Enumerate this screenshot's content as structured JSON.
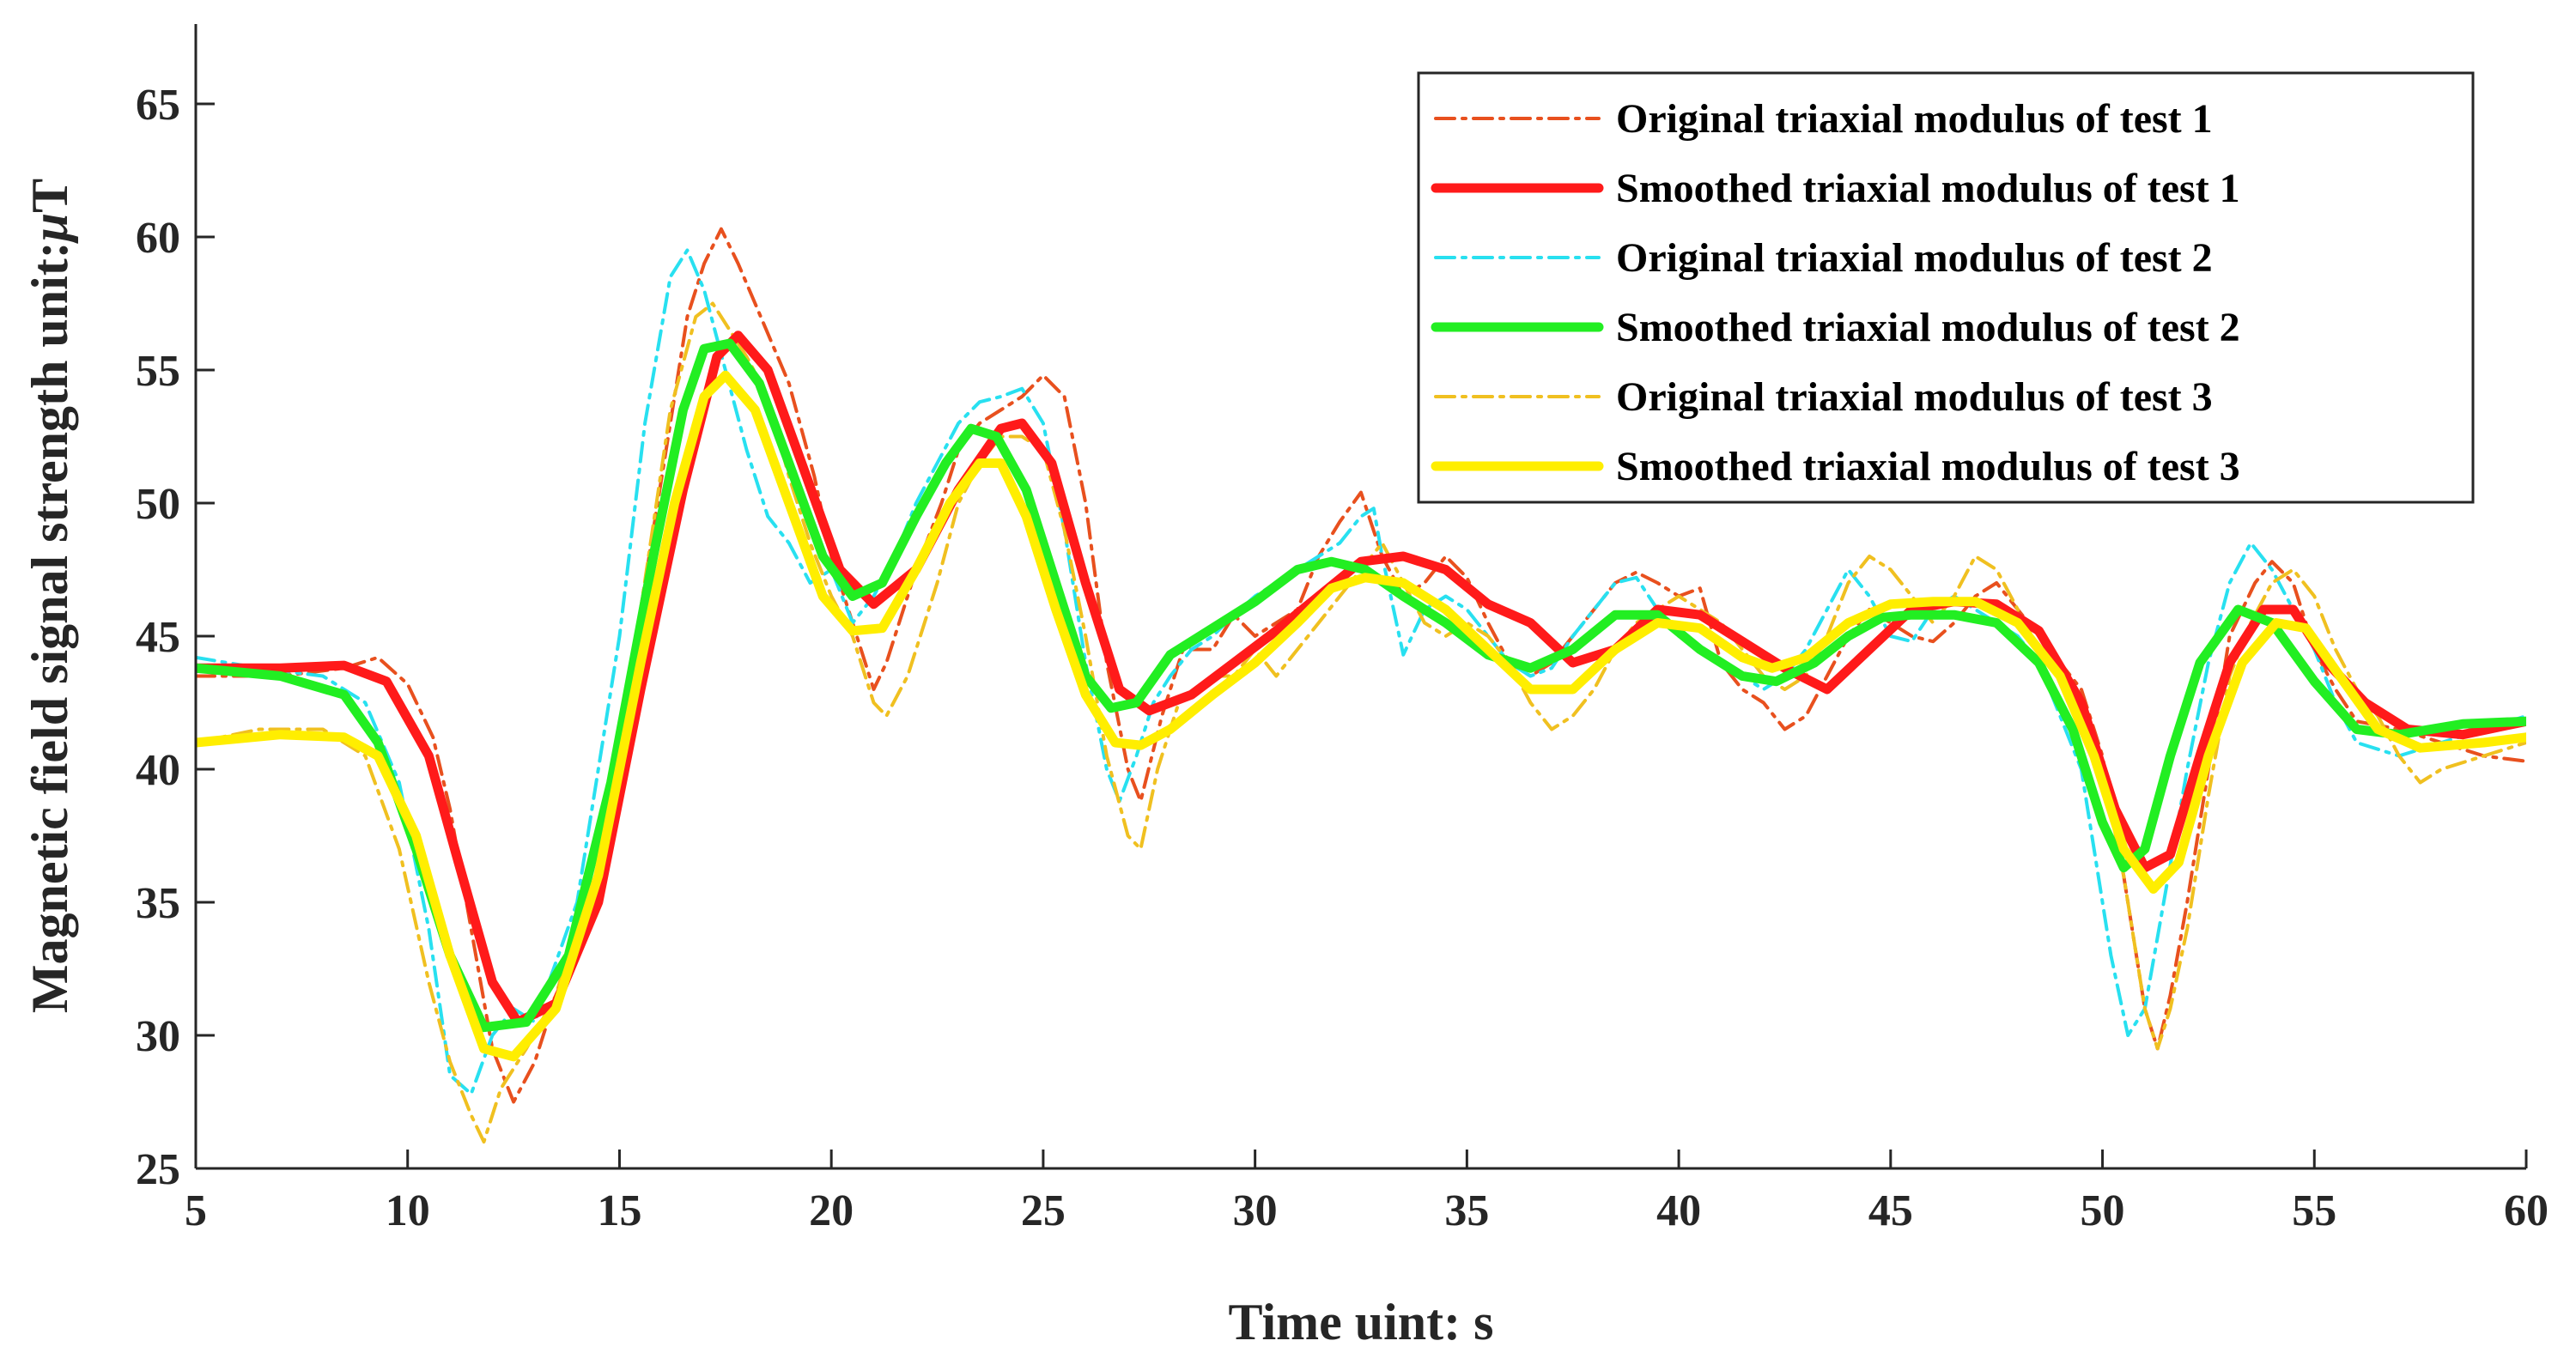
{
  "chart_data": {
    "type": "line",
    "xlabel": "Time  uint: s",
    "ylabel_prefix": "Magnetic field signal strength  unit:",
    "ylabel_unit_greek": "μ",
    "ylabel_unit_suffix": "T",
    "xlim": [
      5,
      60
    ],
    "ylim": [
      25,
      68
    ],
    "xticks": [
      5,
      10,
      15,
      20,
      25,
      30,
      35,
      40,
      45,
      50,
      55,
      60
    ],
    "yticks": [
      25,
      30,
      35,
      40,
      45,
      50,
      55,
      60,
      65
    ],
    "legend_location": "top-right",
    "grid": false,
    "series": [
      {
        "name": "Original triaxial modulus of test 1",
        "style": "dashdot",
        "color": "#e8501e",
        "x": [
          5,
          7,
          8.5,
          9.3,
          10,
          10.6,
          11,
          11.5,
          12,
          12.5,
          13,
          14,
          15,
          16,
          16.6,
          17,
          17.4,
          17.8,
          18.2,
          18.6,
          19,
          19.6,
          20,
          20.5,
          21,
          21.3,
          22,
          22.6,
          23,
          23.5,
          24,
          24.5,
          25,
          25.5,
          26,
          26.5,
          27,
          27.3,
          27.8,
          28.3,
          29,
          29.5,
          30,
          31,
          31.5,
          32,
          32.5,
          33,
          33.5,
          34,
          34.5,
          35,
          35.5,
          36,
          36.5,
          37,
          37.5,
          38,
          38.5,
          39,
          39.5,
          40,
          40.5,
          41,
          41.5,
          42,
          42.5,
          43,
          43.5,
          44,
          44.5,
          45,
          45.5,
          46,
          46.5,
          47,
          47.5,
          48,
          48.5,
          49,
          49.5,
          50,
          50.5,
          51,
          51.3,
          51.6,
          52,
          52.5,
          53,
          53.3,
          53.6,
          54,
          54.5,
          55,
          55.5,
          56,
          57,
          58,
          59,
          60
        ],
        "y": [
          43.5,
          43.5,
          43.8,
          44.2,
          43.2,
          41.2,
          38.5,
          34,
          29.5,
          27.5,
          29,
          34,
          41,
          51,
          57,
          59,
          60.3,
          59,
          57.5,
          56,
          54.5,
          51,
          48,
          45.5,
          43,
          44,
          47.5,
          50,
          52,
          53,
          53.5,
          54,
          54.8,
          54,
          50,
          44,
          40,
          38.8,
          42,
          44.5,
          44.5,
          45.8,
          45,
          46,
          48,
          49.3,
          50.4,
          48,
          46.5,
          47,
          48,
          47.2,
          45.5,
          44,
          43.5,
          44,
          45,
          46,
          47,
          47.4,
          47,
          46.5,
          46.8,
          44,
          43,
          42.5,
          41.5,
          42,
          43.5,
          45,
          46,
          45.5,
          45,
          44.8,
          45.5,
          46.5,
          47,
          46,
          45,
          44,
          43,
          40.5,
          36,
          31,
          29.5,
          31.5,
          35,
          40,
          45,
          46,
          47,
          47.8,
          47,
          44.5,
          43,
          41.8,
          41.5,
          41,
          40.5,
          40.3
        ]
      },
      {
        "name": "Smoothed triaxial modulus of test 1",
        "style": "solid",
        "color": "#ff1a1a",
        "x": [
          5,
          7,
          8.5,
          9.5,
          10.5,
          11.2,
          12,
          12.6,
          13.5,
          14.5,
          15.5,
          16.5,
          17.3,
          17.8,
          18.5,
          19.3,
          20.2,
          21,
          22,
          23,
          24,
          24.5,
          25.2,
          26,
          26.8,
          27.5,
          28.5,
          29.5,
          30.5,
          31.5,
          32.5,
          33.5,
          34.5,
          35.5,
          36.5,
          37.5,
          38.5,
          39.5,
          40.5,
          41.5,
          42.5,
          43.5,
          44.5,
          45.5,
          46.5,
          47.5,
          48.5,
          49.5,
          50.3,
          51,
          51.6,
          52.3,
          53,
          53.8,
          54.5,
          55.3,
          56.2,
          57.2,
          58.5,
          60
        ],
        "y": [
          43.8,
          43.8,
          43.9,
          43.3,
          40.5,
          36.5,
          32,
          30.5,
          31.2,
          35,
          43,
          50.5,
          55.5,
          56.3,
          55,
          51.5,
          47.5,
          46.2,
          47.5,
          50.5,
          52.8,
          53,
          51.5,
          47,
          43,
          42.2,
          42.8,
          44,
          45.2,
          46.5,
          47.8,
          48,
          47.5,
          46.2,
          45.5,
          44,
          44.5,
          46,
          45.8,
          44.8,
          43.8,
          43,
          44.5,
          46,
          46.3,
          46.2,
          45.2,
          42.5,
          38.5,
          36.3,
          36.8,
          40.5,
          44,
          46,
          46,
          44,
          42.5,
          41.5,
          41.3,
          41.8
        ]
      },
      {
        "name": "Original triaxial modulus of test 2",
        "style": "dashdot",
        "color": "#28e0f0",
        "x": [
          5,
          6.5,
          8,
          9,
          9.8,
          10.5,
          11,
          11.5,
          12,
          12.5,
          13,
          14,
          15,
          15.6,
          16.2,
          16.6,
          17,
          17.5,
          18,
          18.5,
          19,
          19.5,
          20,
          20.5,
          21,
          21.5,
          22,
          22.5,
          23,
          23.5,
          24,
          24.5,
          25,
          25.5,
          26,
          26.5,
          26.8,
          27.2,
          27.6,
          28,
          28.5,
          29,
          29.5,
          30,
          30.5,
          31,
          31.5,
          32,
          32.5,
          32.8,
          33,
          33.5,
          34,
          34.5,
          35,
          35.5,
          36,
          36.5,
          37,
          37.5,
          38,
          38.5,
          39,
          39.5,
          40,
          40.5,
          41,
          41.5,
          42,
          42.5,
          43,
          43.5,
          44,
          44.5,
          45,
          45.5,
          46,
          46.5,
          47,
          47.5,
          48,
          48.5,
          49,
          49.5,
          49.8,
          50.2,
          50.6,
          51,
          51.5,
          52,
          52.5,
          53,
          53.5,
          54,
          54.5,
          55,
          55.5,
          56,
          57,
          58,
          59,
          60
        ],
        "y": [
          44.2,
          43.8,
          43.5,
          42.5,
          39.5,
          34,
          28.5,
          27.8,
          30,
          31,
          30.5,
          35,
          45,
          53,
          58.5,
          59.5,
          58,
          55,
          52,
          49.5,
          48.5,
          47,
          47.5,
          45.5,
          46.5,
          48,
          50,
          51.5,
          53,
          53.8,
          54,
          54.3,
          53,
          49,
          44,
          40,
          38.8,
          40.5,
          42.5,
          43.5,
          44.5,
          45,
          45.8,
          46.5,
          47,
          47.5,
          48,
          48.5,
          49.5,
          49.8,
          48,
          44.3,
          46,
          46.5,
          46,
          45,
          44,
          43.5,
          43.8,
          45,
          46,
          47,
          47.2,
          46,
          45,
          44.5,
          44,
          43.5,
          43,
          43.5,
          44.5,
          46,
          47.5,
          46.5,
          45,
          44.8,
          46,
          46.5,
          46,
          45.5,
          45,
          44,
          42,
          40,
          37,
          33,
          30,
          31,
          35.5,
          40,
          44,
          47,
          48.5,
          47.5,
          46,
          44.5,
          42.5,
          41,
          40.5,
          41,
          41.5,
          42
        ]
      },
      {
        "name": "Smoothed triaxial modulus of test 2",
        "style": "solid",
        "color": "#22ee22",
        "x": [
          5,
          7,
          8.5,
          9.3,
          10.2,
          11,
          11.8,
          12.8,
          13.8,
          14.8,
          15.8,
          16.5,
          17,
          17.6,
          18.3,
          19,
          19.8,
          20.5,
          21.2,
          22,
          22.7,
          23.3,
          23.9,
          24.6,
          25.3,
          26,
          26.6,
          27.2,
          28,
          29,
          30,
          31,
          31.8,
          32.6,
          33.5,
          34.5,
          35.5,
          36.5,
          37.5,
          38.5,
          39.5,
          40.5,
          41.5,
          42.3,
          43.2,
          44,
          44.8,
          45.5,
          46.5,
          47.5,
          48.5,
          49.3,
          50,
          50.5,
          51,
          51.6,
          52.3,
          53.2,
          54,
          55,
          56,
          57,
          58.5,
          60
        ],
        "y": [
          43.8,
          43.5,
          42.8,
          41,
          37,
          33,
          30.3,
          30.5,
          33,
          39.5,
          48,
          53.5,
          55.8,
          56,
          54.5,
          51.5,
          48,
          46.5,
          47,
          49.5,
          51.5,
          52.8,
          52.5,
          50.5,
          47,
          43.5,
          42.3,
          42.5,
          44.3,
          45.3,
          46.3,
          47.5,
          47.8,
          47.5,
          46.5,
          45.5,
          44.3,
          43.8,
          44.5,
          45.8,
          45.8,
          44.5,
          43.5,
          43.3,
          44,
          45,
          45.7,
          45.8,
          45.8,
          45.5,
          44,
          41.5,
          38,
          36.3,
          37,
          40.5,
          44,
          46,
          45.5,
          43.3,
          41.5,
          41.3,
          41.7,
          41.8
        ]
      },
      {
        "name": "Original triaxial modulus of test 3",
        "style": "dashdot",
        "color": "#f0c020",
        "x": [
          5,
          6.5,
          8,
          9,
          9.8,
          10.5,
          11,
          11.5,
          11.8,
          12.2,
          12.8,
          13.5,
          14.5,
          15.5,
          16.2,
          16.8,
          17.2,
          17.6,
          18,
          18.5,
          19,
          19.5,
          20,
          20.5,
          21,
          21.3,
          21.8,
          22.5,
          23,
          23.5,
          24,
          24.5,
          25,
          25.5,
          26,
          26.5,
          27,
          27.3,
          27.7,
          28.2,
          29,
          29.5,
          30,
          30.5,
          31,
          31.5,
          32,
          32.5,
          33,
          33.5,
          34,
          34.5,
          35,
          35.5,
          36,
          36.5,
          37,
          37.5,
          38,
          38.5,
          39,
          39.5,
          40,
          40.5,
          41,
          41.5,
          42,
          42.5,
          43,
          43.5,
          44,
          44.5,
          45,
          45.5,
          46,
          46.5,
          47,
          47.5,
          48,
          48.5,
          49,
          49.5,
          50,
          50.5,
          51,
          51.3,
          51.6,
          52,
          52.5,
          53,
          53.5,
          54,
          54.5,
          55,
          55.5,
          56,
          56.5,
          57,
          57.5,
          58,
          59,
          60
        ],
        "y": [
          41,
          41.5,
          41.5,
          40.5,
          37,
          32,
          29,
          27,
          26,
          28,
          29.5,
          31.5,
          37,
          46,
          53.5,
          57,
          57.5,
          56.5,
          55.5,
          54,
          51,
          48.5,
          46.5,
          45,
          42.5,
          42,
          43.5,
          47,
          50,
          51.5,
          52.5,
          52.5,
          52,
          49,
          45,
          40.5,
          37.5,
          37,
          40,
          42.5,
          43.5,
          43.5,
          44.5,
          43.5,
          44.5,
          45.5,
          46.5,
          47.5,
          48.5,
          47,
          45.5,
          45,
          45.5,
          45,
          44,
          42.5,
          41.5,
          42,
          43,
          44.5,
          45.5,
          46,
          46.5,
          46,
          45.5,
          44.5,
          43.5,
          43,
          43.5,
          45,
          47,
          48,
          47.5,
          46.5,
          45.5,
          46.5,
          48,
          47.5,
          46,
          44.5,
          43.5,
          42,
          40,
          36,
          31,
          29.5,
          31,
          34,
          39,
          43.5,
          45.5,
          47,
          47.5,
          46.5,
          44.5,
          43,
          42,
          40.5,
          39.5,
          40,
          40.5,
          41
        ]
      },
      {
        "name": "Smoothed triaxial modulus of test 3",
        "style": "solid",
        "color": "#ffee00",
        "x": [
          5,
          7,
          8.5,
          9.3,
          10.2,
          11,
          11.8,
          12.5,
          13.5,
          14.5,
          15.5,
          16.3,
          17,
          17.5,
          18.2,
          19,
          19.8,
          20.5,
          21.2,
          22,
          22.8,
          23.5,
          24,
          24.6,
          25.3,
          26,
          26.7,
          27.3,
          28,
          29,
          30,
          31,
          31.8,
          32.6,
          33.5,
          34.5,
          35.5,
          36.5,
          37.5,
          38.5,
          39.5,
          40.5,
          41.5,
          42.2,
          43,
          44,
          45,
          46,
          47,
          48,
          49,
          49.8,
          50.5,
          51.2,
          51.8,
          52.5,
          53.3,
          54.1,
          54.8,
          55.6,
          56.5,
          57.5,
          59,
          60
        ],
        "y": [
          41,
          41.3,
          41.2,
          40.5,
          37.5,
          33,
          29.5,
          29.2,
          31,
          36,
          44,
          50,
          54,
          54.8,
          53.5,
          50,
          46.5,
          45.2,
          45.3,
          47.5,
          50,
          51.5,
          51.5,
          49.5,
          46,
          42.8,
          41,
          40.9,
          41.5,
          42.8,
          44,
          45.5,
          46.8,
          47.2,
          47,
          46,
          44.5,
          43,
          43,
          44.5,
          45.5,
          45.3,
          44.2,
          43.8,
          44.2,
          45.5,
          46.2,
          46.3,
          46.3,
          45.5,
          43.5,
          40.5,
          37,
          35.5,
          36.5,
          40.5,
          44,
          45.5,
          45.3,
          43.5,
          41.5,
          40.8,
          41,
          41.2
        ]
      }
    ]
  }
}
